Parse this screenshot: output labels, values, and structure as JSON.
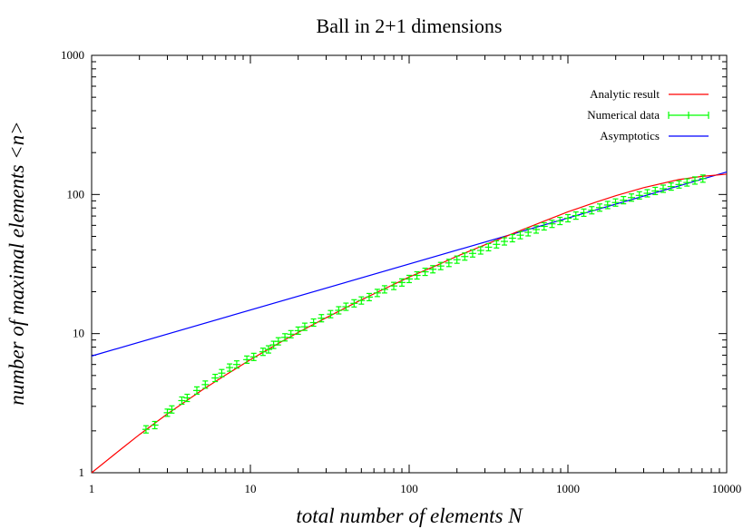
{
  "chart_data": {
    "type": "line",
    "title": "Ball in 2+1 dimensions",
    "xlabel": "total number of elements N",
    "ylabel": "number of maximal elements <n>",
    "x_scale": "log",
    "y_scale": "log",
    "xlim": [
      1,
      10000
    ],
    "ylim": [
      1,
      1000
    ],
    "grid": false,
    "legend_position": "top-right",
    "x_ticks": [
      {
        "value": 1,
        "label": "1"
      },
      {
        "value": 10,
        "label": "10"
      },
      {
        "value": 100,
        "label": "100"
      },
      {
        "value": 1000,
        "label": "1000"
      },
      {
        "value": 10000,
        "label": "10000"
      }
    ],
    "y_ticks": [
      {
        "value": 1,
        "label": "1"
      },
      {
        "value": 10,
        "label": "10"
      },
      {
        "value": 100,
        "label": "100"
      },
      {
        "value": 1000,
        "label": "1000"
      }
    ],
    "series": [
      {
        "name": "Analytic result",
        "kind": "line",
        "color": "#ff0000",
        "x": [
          1,
          1.5,
          2,
          3,
          5,
          7,
          10,
          15,
          20,
          30,
          50,
          70,
          100,
          150,
          200,
          300,
          500,
          700,
          1000,
          1500,
          2000,
          3000,
          5000,
          7000,
          10000
        ],
        "y": [
          1,
          1.45,
          1.88,
          2.65,
          3.95,
          5.05,
          6.5,
          8.5,
          10.2,
          13.0,
          17.5,
          21.0,
          25.5,
          31.0,
          36.0,
          43.5,
          55.0,
          64.0,
          75.0,
          88.0,
          98.0,
          112.0,
          128.0,
          135.0,
          140.0
        ]
      },
      {
        "name": "Numerical data",
        "kind": "errorbar",
        "color": "#00ff00",
        "x": [
          2.2,
          2.5,
          3,
          3.2,
          3.7,
          4,
          4.6,
          5.2,
          6,
          6.6,
          7.4,
          8.2,
          9.5,
          10.5,
          12,
          13,
          14,
          15,
          16.5,
          18,
          20,
          22,
          25,
          28,
          32,
          36,
          40,
          45,
          50,
          56,
          63,
          70,
          80,
          90,
          100,
          112,
          126,
          141,
          158,
          178,
          200,
          224,
          251,
          282,
          316,
          355,
          398,
          447,
          501,
          562,
          631,
          708,
          794,
          891,
          1000,
          1122,
          1259,
          1413,
          1585,
          1778,
          1995,
          2239,
          2512,
          2818,
          3162,
          3548,
          3981,
          4467,
          5012,
          5623,
          6310,
          7079
        ],
        "y": [
          2.05,
          2.2,
          2.7,
          2.85,
          3.3,
          3.45,
          3.9,
          4.3,
          4.8,
          5.2,
          5.7,
          6.0,
          6.5,
          6.8,
          7.4,
          7.7,
          8.3,
          8.8,
          9.4,
          9.9,
          10.5,
          11.2,
          12.0,
          12.9,
          13.8,
          14.7,
          15.6,
          16.5,
          17.3,
          18.3,
          19.6,
          20.8,
          22.0,
          23.3,
          24.7,
          26.2,
          27.8,
          29.0,
          30.6,
          32.2,
          34.0,
          35.8,
          37.7,
          39.6,
          41.8,
          43.8,
          46.0,
          48.5,
          51.0,
          53.5,
          56.0,
          59.0,
          61.5,
          64.5,
          67.5,
          70.5,
          74.0,
          77.0,
          80.5,
          84.0,
          87.5,
          91.0,
          95.0,
          98.5,
          102.0,
          106.0,
          110.0,
          114.0,
          118.0,
          122.0,
          126.0,
          130.0
        ]
      },
      {
        "name": "Asymptotics",
        "kind": "line",
        "color": "#0000ff",
        "x": [
          1,
          10000
        ],
        "y": [
          6.9,
          145
        ]
      }
    ]
  }
}
